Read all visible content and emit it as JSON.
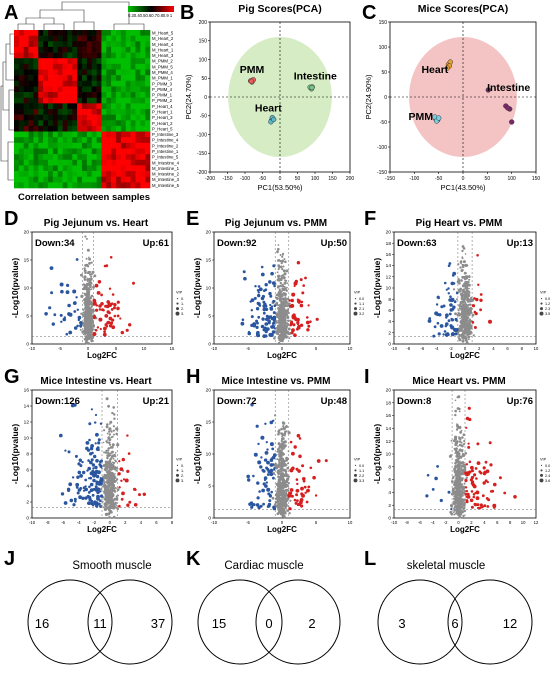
{
  "panel_letters": [
    "A",
    "B",
    "C",
    "D",
    "E",
    "F",
    "G",
    "H",
    "I",
    "J",
    "K",
    "L"
  ],
  "panelA": {
    "caption": "Correlation between samples",
    "legend_ticks": "0.30.40.50.60.70.80.9 1",
    "row_labels": [
      "M_Heart_5",
      "M_Heart_2",
      "M_Heart_4",
      "M_Heart_1",
      "M_Heart_3",
      "M_PMM_2",
      "M_PMM_5",
      "M_PMM_4",
      "M_PMM_1",
      "P_PMM_3",
      "P_PMM_4",
      "P_PMM_1",
      "P_PMM_2",
      "P_Heart_4",
      "P_Heart_1",
      "P_Heart_3",
      "P_Heart_2",
      "P_Heart_5",
      "P_Intestine_3",
      "P_Intestine_4",
      "P_Intestine_2",
      "P_Intestine_1",
      "P_Intestine_5",
      "M_Intestine_4",
      "M_Intestine_1",
      "M_Intestine_2",
      "M_Intestine_3",
      "M_Intestine_5"
    ]
  },
  "chart_data": [
    {
      "id": "B",
      "type": "scatter",
      "title": "Pig   Scores(PCA)",
      "xlabel": "PC1(53.50%)",
      "ylabel": "PC2(24.70%)",
      "xlim": [
        -200,
        200
      ],
      "ylim": [
        -200,
        200
      ],
      "xticks": [
        "-200",
        "-150",
        "-100",
        "-50",
        "0",
        "50",
        "100",
        "150",
        "200"
      ],
      "yticks": [
        "200",
        "150",
        "100",
        "50",
        "0",
        "-50",
        "-100",
        "-150",
        "-200"
      ],
      "ellipse_color": "#d6ecc4",
      "series": [
        {
          "name": "PMM",
          "color": "#e8605a",
          "x": [
            -84,
            -78,
            -80,
            -76,
            -82
          ],
          "y": [
            43,
            45,
            40,
            46,
            42
          ]
        },
        {
          "name": "Intestine",
          "color": "#7cc68a",
          "x": [
            88,
            92,
            90,
            86,
            91
          ],
          "y": [
            24,
            27,
            22,
            26,
            25
          ]
        },
        {
          "name": "Heart",
          "color": "#5bb8c8",
          "x": [
            -24,
            -20,
            -26,
            -22,
            -18
          ],
          "y": [
            -62,
            -58,
            -66,
            -55,
            -60
          ]
        }
      ]
    },
    {
      "id": "C",
      "type": "scatter",
      "title": "Mice   Scores(PCA)",
      "xlabel": "PC1(43.50%)",
      "ylabel": "PC2(24.90%)",
      "xlim": [
        -150,
        150
      ],
      "ylim": [
        -150,
        150
      ],
      "xticks": [
        "-150",
        "-100",
        "-50",
        "0",
        "50",
        "100",
        "150"
      ],
      "yticks": [
        "150",
        "100",
        "50",
        "0",
        "-50",
        "-100",
        "-150"
      ],
      "ellipse_color": "#f4c4c4",
      "series": [
        {
          "name": "Heart",
          "color": "#e8a030",
          "x": [
            -30,
            -26,
            -28,
            -32
          ],
          "y": [
            65,
            70,
            62,
            58
          ]
        },
        {
          "name": "PMM",
          "color": "#7ad0e0",
          "x": [
            -56,
            -52,
            -58,
            -54,
            -50
          ],
          "y": [
            -44,
            -46,
            -40,
            -48,
            -42
          ]
        },
        {
          "name": "Intestine",
          "color": "#7a2a6a",
          "x": [
            52,
            88,
            96,
            100,
            92
          ],
          "y": [
            14,
            -18,
            -24,
            -50,
            -22
          ]
        }
      ]
    },
    {
      "id": "D",
      "type": "scatter",
      "title": "Pig   Jejunum vs. Heart",
      "xlabel": "Log2FC",
      "ylabel": "-Log10(pvalue)",
      "xlim": [
        -10,
        15
      ],
      "ylim": [
        0,
        20
      ],
      "xticks": [
        "-10",
        "-5",
        "0",
        "5",
        "10",
        "15"
      ],
      "yticks": [
        "0",
        "5",
        "10",
        "15",
        "20"
      ],
      "down": "Down:34",
      "up": "Up:61",
      "vip_title": "VIP",
      "vip_levels": [
        "0.0",
        "1.2",
        "2.3",
        "3.5"
      ],
      "n_down": 34,
      "n_up": 61
    },
    {
      "id": "E",
      "type": "scatter",
      "title": "Pig   Jejunum vs. PMM",
      "xlabel": "Log2FC",
      "ylabel": "-Log10(pvalue)",
      "xlim": [
        -10,
        10
      ],
      "ylim": [
        0,
        20
      ],
      "xticks": [
        "-10",
        "-5",
        "0",
        "5",
        "10"
      ],
      "yticks": [
        "0",
        "5",
        "10",
        "15",
        "20"
      ],
      "down": "Down:92",
      "up": "Up:50",
      "vip_title": "VIP",
      "vip_levels": [
        "0.0",
        "1.1",
        "2.1",
        "3.2"
      ],
      "n_down": 92,
      "n_up": 50
    },
    {
      "id": "F",
      "type": "scatter",
      "title": "Pig   Heart vs. PMM",
      "xlabel": "Log2FC",
      "ylabel": "-Log10(pvalue)",
      "xlim": [
        -10,
        10
      ],
      "ylim": [
        0,
        20
      ],
      "xticks": [
        "-10",
        "-8",
        "-6",
        "-4",
        "-2",
        "0",
        "2",
        "4",
        "6",
        "8",
        "10"
      ],
      "yticks": [
        "0",
        "2",
        "4",
        "6",
        "8",
        "10",
        "12",
        "14",
        "16",
        "18",
        "20"
      ],
      "down": "Down:63",
      "up": "Up:13",
      "vip_title": "VIP",
      "vip_levels": [
        "0.0",
        "1.2",
        "2.3",
        "3.5"
      ],
      "n_down": 63,
      "n_up": 13
    },
    {
      "id": "G",
      "type": "scatter",
      "title": "Mice   Intestine vs. Heart",
      "xlabel": "Log2FC",
      "ylabel": "-Log10(pvalue)",
      "xlim": [
        -10,
        8
      ],
      "ylim": [
        0,
        16
      ],
      "xticks": [
        "-10",
        "-8",
        "-6",
        "-4",
        "-2",
        "0",
        "2",
        "4",
        "6",
        "8"
      ],
      "yticks": [
        "0",
        "2",
        "4",
        "6",
        "8",
        "10",
        "12",
        "14",
        "16"
      ],
      "down": "Down:126",
      "up": "Up:21",
      "vip_title": "VIP",
      "vip_levels": [
        "0.0",
        "1.2",
        "2.5",
        "3.7"
      ],
      "n_down": 126,
      "n_up": 21
    },
    {
      "id": "H",
      "type": "scatter",
      "title": "Mice   Intestine vs. PMM",
      "xlabel": "Log2FC",
      "ylabel": "-Log10(pvalue)",
      "xlim": [
        -10,
        10
      ],
      "ylim": [
        0,
        20
      ],
      "xticks": [
        "-10",
        "-5",
        "0",
        "5",
        "10"
      ],
      "yticks": [
        "0",
        "5",
        "10",
        "15",
        "20"
      ],
      "down": "Down:72",
      "up": "Up:48",
      "vip_title": "VIP",
      "vip_levels": [
        "0.0",
        "1.1",
        "2.2",
        "3.3"
      ],
      "n_down": 72,
      "n_up": 48
    },
    {
      "id": "I",
      "type": "scatter",
      "title": "Mice   Heart vs. PMM",
      "xlabel": "Log2FC",
      "ylabel": "-Log10(pvalue)",
      "xlim": [
        -10,
        12
      ],
      "ylim": [
        0,
        20
      ],
      "xticks": [
        "-10",
        "-8",
        "-6",
        "-4",
        "-2",
        "0",
        "2",
        "4",
        "6",
        "8",
        "10",
        "12"
      ],
      "yticks": [
        "0",
        "2",
        "4",
        "6",
        "8",
        "10",
        "12",
        "14",
        "16",
        "18",
        "20"
      ],
      "down": "Down:8",
      "up": "Up:76",
      "vip_title": "VIP",
      "vip_levels": [
        "0.0",
        "1.2",
        "2.4",
        "3.6"
      ],
      "n_down": 8,
      "n_up": 76
    }
  ],
  "venn": [
    {
      "id": "J",
      "title": "Smooth muscle",
      "left": "16",
      "middle": "11",
      "right": "37"
    },
    {
      "id": "K",
      "title": "Cardiac muscle",
      "left": "15",
      "middle": "0",
      "right": "2"
    },
    {
      "id": "L",
      "title": "skeletal muscle",
      "left": "3",
      "middle": "6",
      "right": "12"
    }
  ],
  "colors": {
    "down": "#2a56a0",
    "up": "#d62020",
    "ns": "#8c8c8c"
  }
}
